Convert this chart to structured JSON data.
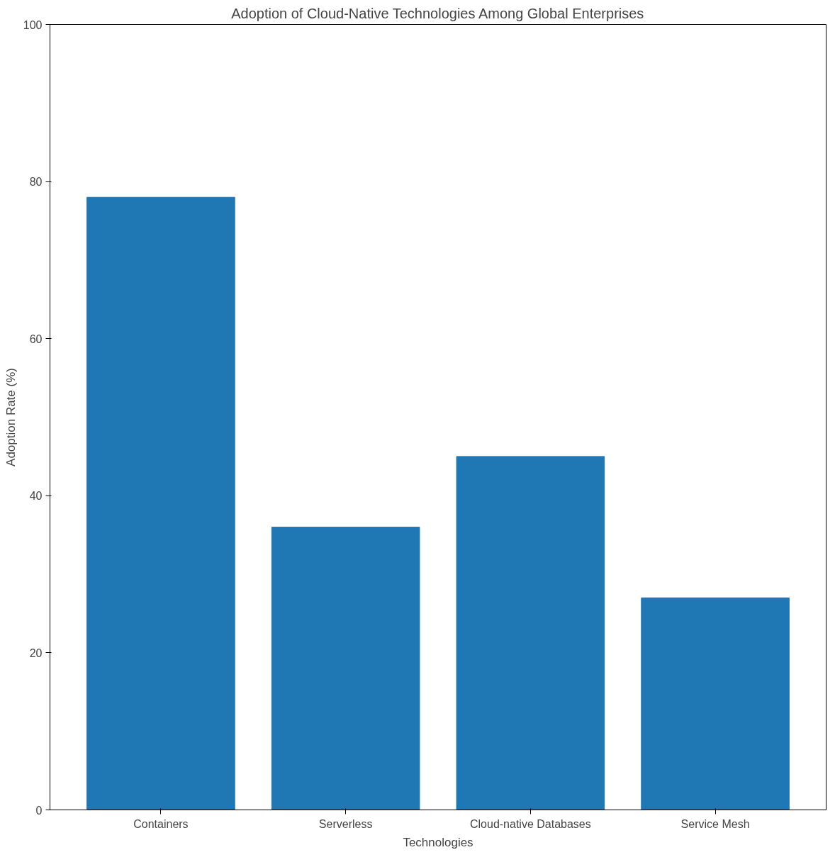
{
  "chart_data": {
    "type": "bar",
    "title": "Adoption of Cloud-Native Technologies Among Global Enterprises",
    "xlabel": "Technologies",
    "ylabel": "Adoption Rate (%)",
    "categories": [
      "Containers",
      "Serverless",
      "Cloud-native Databases",
      "Service Mesh"
    ],
    "values": [
      78,
      36,
      45,
      27
    ],
    "color": "#1f77b4",
    "ylim": [
      0,
      100
    ],
    "yticks": [
      0,
      20,
      40,
      60,
      80,
      100
    ],
    "grid": false
  }
}
